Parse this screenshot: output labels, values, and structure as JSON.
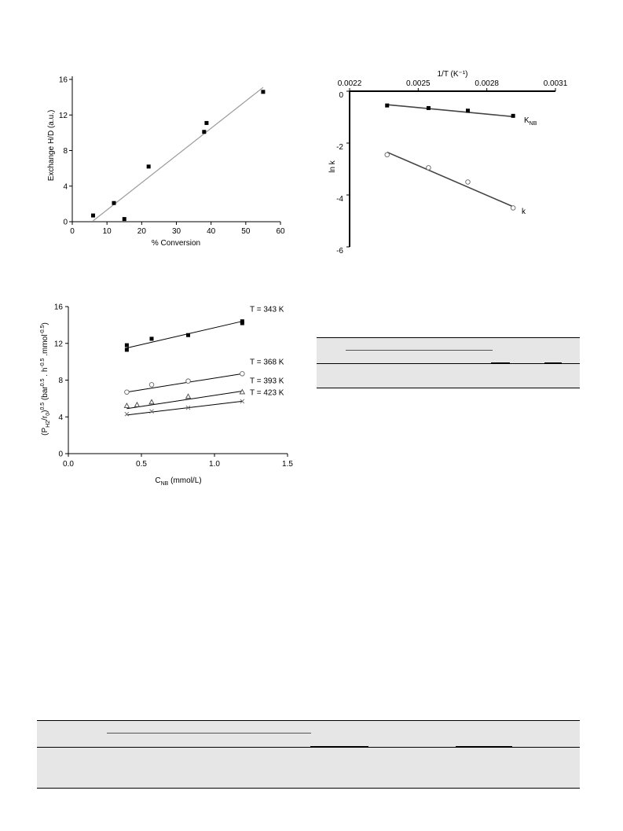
{
  "chart_data": [
    {
      "type": "scatter",
      "title": "",
      "xlabel": "% Conversion",
      "ylabel": "Exchange H/D (a.u.)",
      "xlim": [
        0,
        60
      ],
      "ylim": [
        0,
        16
      ],
      "xticks": [
        0,
        10,
        20,
        30,
        40,
        50,
        60
      ],
      "yticks": [
        0,
        4,
        8,
        12,
        16
      ],
      "series": [
        {
          "x": [
            6,
            12,
            15,
            22,
            38,
            38.7,
            55
          ],
          "y": [
            0.7,
            2.1,
            0.3,
            6.2,
            10.1,
            11.1,
            14.6
          ],
          "marker": "filled-square",
          "color": "#000000"
        }
      ],
      "fit_lines": [
        {
          "x": [
            6,
            55
          ],
          "y": [
            0.1,
            15.1
          ],
          "color": "#9a9a9a"
        }
      ]
    },
    {
      "type": "scatter",
      "title": "",
      "xlabel": "1/T (K⁻¹)",
      "ylabel": "ln k",
      "x_axis_position": "top",
      "xlim": [
        0.0022,
        0.0031
      ],
      "ylim": [
        -6,
        0
      ],
      "xticks": [
        0.0022,
        0.0025,
        0.0028,
        0.0031
      ],
      "xtick_labels": [
        "0.0022",
        "0.0025",
        "0.0028",
        "0.0031"
      ],
      "yticks": [
        0,
        -2,
        -4,
        -6
      ],
      "series": [
        {
          "label": "K",
          "label_sub": "NB",
          "x": [
            0.002364,
            0.002545,
            0.002717,
            0.002915
          ],
          "y": [
            -0.55,
            -0.65,
            -0.75,
            -0.95
          ],
          "marker": "filled-square",
          "color": "#000000"
        },
        {
          "label": "k",
          "x": [
            0.002364,
            0.002545,
            0.002717,
            0.002915
          ],
          "y": [
            -2.45,
            -2.95,
            -3.5,
            -4.5
          ],
          "marker": "open-circle",
          "color": "#000000"
        }
      ],
      "fit_lines": [
        {
          "x": [
            0.002364,
            0.002915
          ],
          "y": [
            -0.52,
            -0.98
          ],
          "color": "#444444"
        },
        {
          "x": [
            0.002364,
            0.002915
          ],
          "y": [
            -2.35,
            -4.45
          ],
          "color": "#444444"
        }
      ]
    },
    {
      "type": "scatter",
      "title": "",
      "xlabel_main": "C",
      "xlabel_sub": "NB",
      "xlabel_rest": " (mmol/L)",
      "ylabel": "(P_H2/r_0)^0.5 (bar^0.5 . h^-0.5 .mmol^-0.5)",
      "xlim": [
        0,
        1.5
      ],
      "ylim": [
        0,
        16
      ],
      "xticks": [
        0,
        0.5,
        1.0,
        1.5
      ],
      "xtick_labels": [
        "0.0",
        "0.5",
        "1.0",
        "1.5"
      ],
      "yticks": [
        0,
        4,
        8,
        12,
        16
      ],
      "series": [
        {
          "label": "T = 343 K",
          "x": [
            0.4,
            0.4,
            0.57,
            0.82,
            1.19,
            1.19
          ],
          "y": [
            11.3,
            11.8,
            12.5,
            12.9,
            14.2,
            14.4
          ],
          "marker": "filled-square",
          "fit": [
            [
              0.4,
              11.5
            ],
            [
              1.19,
              14.4
            ]
          ]
        },
        {
          "label": "T = 368 K",
          "x": [
            0.4,
            0.57,
            0.82,
            1.19
          ],
          "y": [
            6.7,
            7.5,
            7.9,
            8.7
          ],
          "marker": "open-circle",
          "fit": [
            [
              0.4,
              6.7
            ],
            [
              1.19,
              8.7
            ]
          ]
        },
        {
          "label": "T = 393 K",
          "x": [
            0.4,
            0.47,
            0.57,
            0.82,
            1.19
          ],
          "y": [
            5.2,
            5.3,
            5.6,
            6.2,
            6.7
          ],
          "marker": "triangle",
          "fit": [
            [
              0.4,
              4.9
            ],
            [
              1.19,
              6.8
            ]
          ]
        },
        {
          "label": "T = 423 K",
          "x": [
            0.4,
            0.57,
            0.82,
            1.19
          ],
          "y": [
            4.3,
            4.6,
            5.0,
            5.7
          ],
          "marker": "cross",
          "fit": [
            [
              0.4,
              4.2
            ],
            [
              1.19,
              5.7
            ]
          ]
        }
      ]
    }
  ],
  "ui": {
    "plot_a": {
      "xlabel": "% Conversion",
      "ylabel": "Exchange H/D (a.u.)"
    },
    "plot_b": {
      "xlabel": "1/T (K⁻¹)",
      "ylabel": "ln k",
      "k_label": "k",
      "knb_main": "K",
      "knb_sub": "NB"
    },
    "plot_c": {
      "xlabel_main": "C",
      "xlabel_sub": "NB",
      "xlabel_rest": " (mmol/L)",
      "ylabel_parts": [
        "(P",
        "H2",
        "/r",
        "0",
        ")",
        "0.5",
        "  (bar",
        "0.5",
        " . h",
        "-0.5",
        " .mmol",
        "-0.5",
        ")"
      ]
    }
  }
}
